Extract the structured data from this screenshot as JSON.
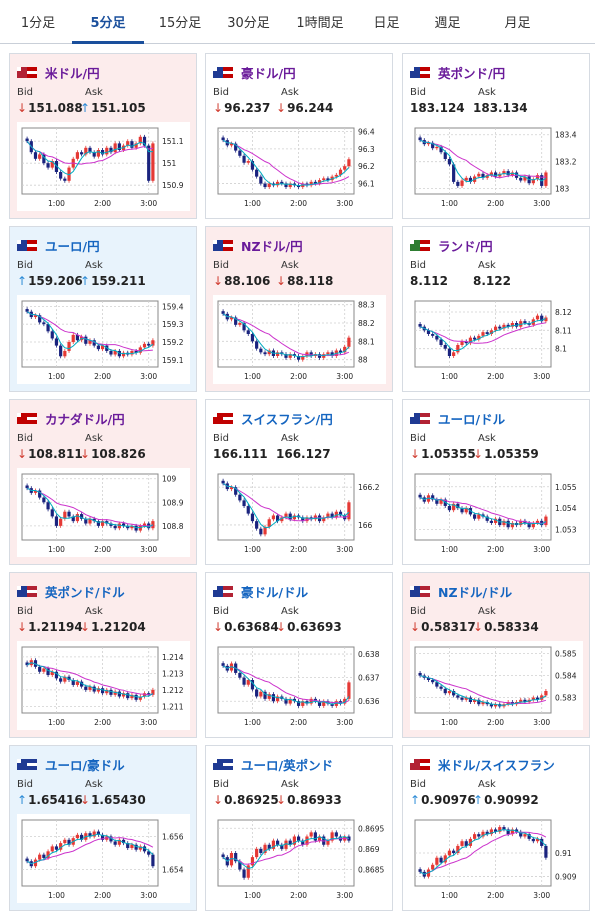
{
  "tabs": [
    {
      "label": "1分足",
      "active": false
    },
    {
      "label": "5分足",
      "active": true
    },
    {
      "label": "15分足",
      "active": false
    },
    {
      "label": "30分足",
      "active": false
    },
    {
      "label": "1時間足",
      "active": false
    },
    {
      "label": "日足",
      "active": false
    },
    {
      "label": "週足",
      "active": false
    },
    {
      "label": "月足",
      "active": false
    }
  ],
  "labels": {
    "bid": "Bid",
    "ask": "Ask"
  },
  "colors": {
    "up": "#2a8ad6",
    "down": "#d03a2e",
    "title_purple": "#6a1b9a",
    "title_blue": "#1565c0",
    "candle_up": "#e53935",
    "candle_down": "#1a237e",
    "ma_short": "#00acc1",
    "ma_long": "#cc33cc"
  },
  "cards": [
    {
      "pair": "米ドル/円",
      "flags": [
        "#b22234",
        "#c00000"
      ],
      "bg": "pink",
      "title_color": "purple",
      "bid": "151.088",
      "bid_dir": "down",
      "ask": "151.105",
      "ask_dir": "up",
      "chart_data": {
        "type": "candlestick",
        "x_ticks": [
          "1:00",
          "2:00",
          "3:00"
        ],
        "y_ticks": [
          "151.1",
          "151",
          "150.9"
        ],
        "ylim": [
          150.86,
          151.16
        ],
        "close": [
          151.1,
          151.05,
          151.02,
          151.04,
          151.0,
          150.98,
          151.01,
          150.96,
          150.93,
          150.92,
          150.98,
          151.02,
          151.05,
          151.04,
          151.07,
          151.05,
          151.03,
          151.06,
          151.04,
          151.07,
          151.05,
          151.09,
          151.06,
          151.08,
          151.1,
          151.07,
          151.09,
          151.12,
          151.08,
          150.92,
          151.09
        ]
      }
    },
    {
      "pair": "豪ドル/円",
      "flags": [
        "#1f3a93",
        "#c00000"
      ],
      "bg": "white",
      "title_color": "purple",
      "bid": "96.237",
      "bid_dir": "down",
      "ask": "96.244",
      "ask_dir": "down",
      "chart_data": {
        "type": "candlestick",
        "x_ticks": [
          "1:00",
          "2:00",
          "3:00"
        ],
        "y_ticks": [
          "96.4",
          "96.3",
          "96.2",
          "96.1"
        ],
        "ylim": [
          96.04,
          96.42
        ],
        "close": [
          96.35,
          96.32,
          96.33,
          96.29,
          96.26,
          96.22,
          96.23,
          96.18,
          96.14,
          96.1,
          96.08,
          96.1,
          96.09,
          96.11,
          96.1,
          96.08,
          96.1,
          96.09,
          96.08,
          96.1,
          96.09,
          96.11,
          96.1,
          96.12,
          96.13,
          96.12,
          96.14,
          96.15,
          96.18,
          96.2,
          96.24
        ]
      }
    },
    {
      "pair": "英ポンド/円",
      "flags": [
        "#1f3a93",
        "#c00000"
      ],
      "bg": "white",
      "title_color": "purple",
      "bid": "183.124",
      "bid_dir": "",
      "ask": "183.134",
      "ask_dir": "",
      "chart_data": {
        "type": "candlestick",
        "x_ticks": [
          "1:00",
          "2:00",
          "3:00"
        ],
        "y_ticks": [
          "183.4",
          "183.2",
          "183"
        ],
        "ylim": [
          182.96,
          183.45
        ],
        "close": [
          183.36,
          183.33,
          183.34,
          183.3,
          183.31,
          183.27,
          183.22,
          183.18,
          183.05,
          183.02,
          183.06,
          183.08,
          183.05,
          183.09,
          183.11,
          183.08,
          183.1,
          183.12,
          183.09,
          183.11,
          183.13,
          183.1,
          183.12,
          183.08,
          183.06,
          183.09,
          183.04,
          183.07,
          183.1,
          183.02,
          183.12
        ]
      }
    },
    {
      "pair": "ユーロ/円",
      "flags": [
        "#1f3a93",
        "#c00000"
      ],
      "bg": "blue",
      "title_color": "blue",
      "bid": "159.206",
      "bid_dir": "up",
      "ask": "159.211",
      "ask_dir": "up",
      "chart_data": {
        "type": "candlestick",
        "x_ticks": [
          "1:00",
          "2:00",
          "3:00"
        ],
        "y_ticks": [
          "159.4",
          "159.3",
          "159.2",
          "159.1"
        ],
        "ylim": [
          159.06,
          159.43
        ],
        "close": [
          159.37,
          159.34,
          159.35,
          159.31,
          159.3,
          159.26,
          159.22,
          159.18,
          159.12,
          159.15,
          159.2,
          159.24,
          159.21,
          159.23,
          159.19,
          159.21,
          159.18,
          159.16,
          159.18,
          159.15,
          159.13,
          159.15,
          159.12,
          159.14,
          159.13,
          159.15,
          159.14,
          159.17,
          159.19,
          159.18,
          159.21
        ]
      }
    },
    {
      "pair": "NZドル/円",
      "flags": [
        "#1f3a93",
        "#c00000"
      ],
      "bg": "pink",
      "title_color": "purple",
      "bid": "88.106",
      "bid_dir": "down",
      "ask": "88.118",
      "ask_dir": "down",
      "chart_data": {
        "type": "candlestick",
        "x_ticks": [
          "1:00",
          "2:00",
          "3:00"
        ],
        "y_ticks": [
          "88.3",
          "88.2",
          "88.1",
          "88"
        ],
        "ylim": [
          87.96,
          88.32
        ],
        "close": [
          88.25,
          88.22,
          88.23,
          88.19,
          88.2,
          88.16,
          88.14,
          88.1,
          88.06,
          88.04,
          88.03,
          88.05,
          88.02,
          88.04,
          88.03,
          88.01,
          88.03,
          88.02,
          88.0,
          88.02,
          88.04,
          88.02,
          88.03,
          88.01,
          88.03,
          88.04,
          88.02,
          88.05,
          88.04,
          88.07,
          88.12
        ]
      }
    },
    {
      "pair": "ランド/円",
      "flags": [
        "#2e7d32",
        "#c00000"
      ],
      "bg": "white",
      "title_color": "purple",
      "bid": "8.112",
      "bid_dir": "",
      "ask": "8.122",
      "ask_dir": "",
      "chart_data": {
        "type": "candlestick",
        "x_ticks": [
          "1:00",
          "2:00",
          "3:00"
        ],
        "y_ticks": [
          "8.12",
          "8.11",
          "8.1"
        ],
        "ylim": [
          8.09,
          8.126
        ],
        "close": [
          8.112,
          8.11,
          8.108,
          8.107,
          8.105,
          8.102,
          8.1,
          8.096,
          8.098,
          8.102,
          8.104,
          8.103,
          8.106,
          8.105,
          8.107,
          8.109,
          8.108,
          8.11,
          8.112,
          8.111,
          8.113,
          8.112,
          8.114,
          8.112,
          8.115,
          8.114,
          8.113,
          8.116,
          8.118,
          8.115,
          8.117
        ]
      }
    },
    {
      "pair": "カナダドル/円",
      "flags": [
        "#c00000",
        "#c00000"
      ],
      "bg": "pink",
      "title_color": "purple",
      "bid": "108.811",
      "bid_dir": "down",
      "ask": "108.826",
      "ask_dir": "down",
      "chart_data": {
        "type": "candlestick",
        "x_ticks": [
          "1:00",
          "2:00",
          "3:00"
        ],
        "y_ticks": [
          "109",
          "108.9",
          "108.8"
        ],
        "ylim": [
          108.74,
          109.02
        ],
        "close": [
          108.96,
          108.94,
          108.95,
          108.92,
          108.9,
          108.87,
          108.84,
          108.8,
          108.83,
          108.86,
          108.84,
          108.82,
          108.85,
          108.83,
          108.81,
          108.83,
          108.82,
          108.8,
          108.82,
          108.81,
          108.8,
          108.79,
          108.81,
          108.8,
          108.79,
          108.8,
          108.78,
          108.8,
          108.81,
          108.79,
          108.82
        ]
      }
    },
    {
      "pair": "スイスフラン/円",
      "flags": [
        "#c00000",
        "#c00000"
      ],
      "bg": "white",
      "title_color": "blue",
      "bid": "166.111",
      "bid_dir": "",
      "ask": "166.127",
      "ask_dir": "",
      "chart_data": {
        "type": "candlestick",
        "x_ticks": [
          "1:00",
          "2:00",
          "3:00"
        ],
        "y_ticks": [
          "166.2",
          "166"
        ],
        "ylim": [
          165.92,
          166.27
        ],
        "close": [
          166.22,
          166.19,
          166.2,
          166.16,
          166.13,
          166.1,
          166.06,
          166.02,
          165.98,
          165.95,
          165.99,
          166.03,
          166.05,
          166.02,
          166.04,
          166.06,
          166.03,
          166.05,
          166.04,
          166.02,
          166.04,
          166.03,
          166.05,
          166.02,
          166.04,
          166.06,
          166.04,
          166.07,
          166.05,
          166.03,
          166.12
        ]
      }
    },
    {
      "pair": "ユーロ/ドル",
      "flags": [
        "#1f3a93",
        "#b22234"
      ],
      "bg": "white",
      "title_color": "blue",
      "bid": "1.05355",
      "bid_dir": "down",
      "ask": "1.05359",
      "ask_dir": "down",
      "chart_data": {
        "type": "candlestick",
        "x_ticks": [
          "1:00",
          "2:00",
          "3:00"
        ],
        "y_ticks": [
          "1.055",
          "1.054",
          "1.053"
        ],
        "ylim": [
          1.0525,
          1.0556
        ],
        "close": [
          1.0545,
          1.0543,
          1.0546,
          1.0544,
          1.0542,
          1.0544,
          1.0541,
          1.0539,
          1.0542,
          1.054,
          1.0538,
          1.054,
          1.0537,
          1.0535,
          1.0537,
          1.0536,
          1.0534,
          1.0533,
          1.0535,
          1.0532,
          1.0534,
          1.0531,
          1.0533,
          1.0532,
          1.0534,
          1.0533,
          1.0531,
          1.0533,
          1.0534,
          1.0532,
          1.0536
        ]
      }
    },
    {
      "pair": "英ポンド/ドル",
      "flags": [
        "#1f3a93",
        "#b22234"
      ],
      "bg": "pink",
      "title_color": "blue",
      "bid": "1.21194",
      "bid_dir": "down",
      "ask": "1.21204",
      "ask_dir": "down",
      "chart_data": {
        "type": "candlestick",
        "x_ticks": [
          "1:00",
          "2:00",
          "3:00"
        ],
        "y_ticks": [
          "1.214",
          "1.213",
          "1.212",
          "1.211"
        ],
        "ylim": [
          1.2106,
          1.2146
        ],
        "close": [
          1.2135,
          1.2138,
          1.2134,
          1.2131,
          1.2133,
          1.2129,
          1.2131,
          1.2127,
          1.2125,
          1.2128,
          1.2126,
          1.2123,
          1.2125,
          1.2122,
          1.212,
          1.2122,
          1.2119,
          1.2121,
          1.2118,
          1.212,
          1.2117,
          1.2119,
          1.2116,
          1.2118,
          1.2115,
          1.2117,
          1.2114,
          1.2116,
          1.2118,
          1.2117,
          1.212
        ]
      }
    },
    {
      "pair": "豪ドル/ドル",
      "flags": [
        "#1f3a93",
        "#b22234"
      ],
      "bg": "white",
      "title_color": "blue",
      "bid": "0.63684",
      "bid_dir": "down",
      "ask": "0.63693",
      "ask_dir": "down",
      "chart_data": {
        "type": "candlestick",
        "x_ticks": [
          "1:00",
          "2:00",
          "3:00"
        ],
        "y_ticks": [
          "0.638",
          "0.637",
          "0.636"
        ],
        "ylim": [
          0.6355,
          0.6383
        ],
        "close": [
          0.6375,
          0.6373,
          0.6376,
          0.6372,
          0.637,
          0.6367,
          0.6369,
          0.6365,
          0.6362,
          0.6364,
          0.6361,
          0.6363,
          0.636,
          0.6362,
          0.6361,
          0.6359,
          0.6361,
          0.636,
          0.6358,
          0.636,
          0.6359,
          0.6361,
          0.636,
          0.6358,
          0.636,
          0.6359,
          0.6358,
          0.636,
          0.6359,
          0.6361,
          0.6368
        ]
      }
    },
    {
      "pair": "NZドル/ドル",
      "flags": [
        "#1f3a93",
        "#b22234"
      ],
      "bg": "pink",
      "title_color": "blue",
      "bid": "0.58317",
      "bid_dir": "down",
      "ask": "0.58334",
      "ask_dir": "down",
      "chart_data": {
        "type": "candlestick",
        "x_ticks": [
          "1:00",
          "2:00",
          "3:00"
        ],
        "y_ticks": [
          "0.585",
          "0.584",
          "0.583"
        ],
        "ylim": [
          0.5823,
          0.5853
        ],
        "close": [
          0.584,
          0.5839,
          0.5838,
          0.5837,
          0.5835,
          0.5834,
          0.5832,
          0.5833,
          0.5831,
          0.583,
          0.5829,
          0.583,
          0.5828,
          0.5829,
          0.5827,
          0.5828,
          0.5827,
          0.5826,
          0.5827,
          0.5826,
          0.5827,
          0.5828,
          0.5827,
          0.5828,
          0.5829,
          0.5828,
          0.5829,
          0.583,
          0.5829,
          0.5831,
          0.5833
        ]
      }
    },
    {
      "pair": "ユーロ/豪ドル",
      "flags": [
        "#1f3a93",
        "#1f3a93"
      ],
      "bg": "blue",
      "title_color": "blue",
      "bid": "1.65416",
      "bid_dir": "up",
      "ask": "1.65430",
      "ask_dir": "down",
      "chart_data": {
        "type": "candlestick",
        "x_ticks": [
          "1:00",
          "2:00",
          "3:00"
        ],
        "y_ticks": [
          "1.656",
          "1.654"
        ],
        "ylim": [
          1.653,
          1.657
        ],
        "close": [
          1.6545,
          1.6542,
          1.6546,
          1.6549,
          1.6547,
          1.6551,
          1.6554,
          1.6552,
          1.6556,
          1.6558,
          1.6555,
          1.6559,
          1.6561,
          1.6558,
          1.6562,
          1.656,
          1.6563,
          1.6561,
          1.6558,
          1.656,
          1.6557,
          1.6555,
          1.6558,
          1.6556,
          1.6553,
          1.6555,
          1.6552,
          1.6554,
          1.6551,
          1.6549,
          1.6542
        ]
      }
    },
    {
      "pair": "ユーロ/英ポンド",
      "flags": [
        "#1f3a93",
        "#1f3a93"
      ],
      "bg": "white",
      "title_color": "blue",
      "bid": "0.86925",
      "bid_dir": "down",
      "ask": "0.86933",
      "ask_dir": "down",
      "chart_data": {
        "type": "candlestick",
        "x_ticks": [
          "1:00",
          "2:00",
          "3:00"
        ],
        "y_ticks": [
          "0.8695",
          "0.869",
          "0.8685"
        ],
        "ylim": [
          0.8681,
          0.8697
        ],
        "close": [
          0.8688,
          0.8686,
          0.8689,
          0.8687,
          0.8685,
          0.8683,
          0.8686,
          0.8688,
          0.869,
          0.8689,
          0.8691,
          0.869,
          0.8692,
          0.8691,
          0.869,
          0.8692,
          0.8691,
          0.8693,
          0.8692,
          0.8691,
          0.8693,
          0.8694,
          0.8692,
          0.8693,
          0.8691,
          0.8692,
          0.8694,
          0.8693,
          0.8692,
          0.8693,
          0.8692
        ]
      }
    },
    {
      "pair": "米ドル/スイスフラン",
      "flags": [
        "#b22234",
        "#c00000"
      ],
      "bg": "white",
      "title_color": "blue",
      "bid": "0.90976",
      "bid_dir": "up",
      "ask": "0.90992",
      "ask_dir": "up",
      "chart_data": {
        "type": "candlestick",
        "x_ticks": [
          "1:00",
          "2:00",
          "3:00"
        ],
        "y_ticks": [
          "0.91",
          "0.909"
        ],
        "ylim": [
          0.9086,
          0.9114
        ],
        "close": [
          0.9092,
          0.909,
          0.9093,
          0.9095,
          0.9098,
          0.9096,
          0.9099,
          0.9101,
          0.91,
          0.9103,
          0.9105,
          0.9103,
          0.9106,
          0.9108,
          0.9107,
          0.9109,
          0.9108,
          0.911,
          0.9109,
          0.9111,
          0.911,
          0.9108,
          0.911,
          0.9109,
          0.9107,
          0.9108,
          0.9106,
          0.9105,
          0.9106,
          0.9103,
          0.9098
        ]
      }
    }
  ]
}
